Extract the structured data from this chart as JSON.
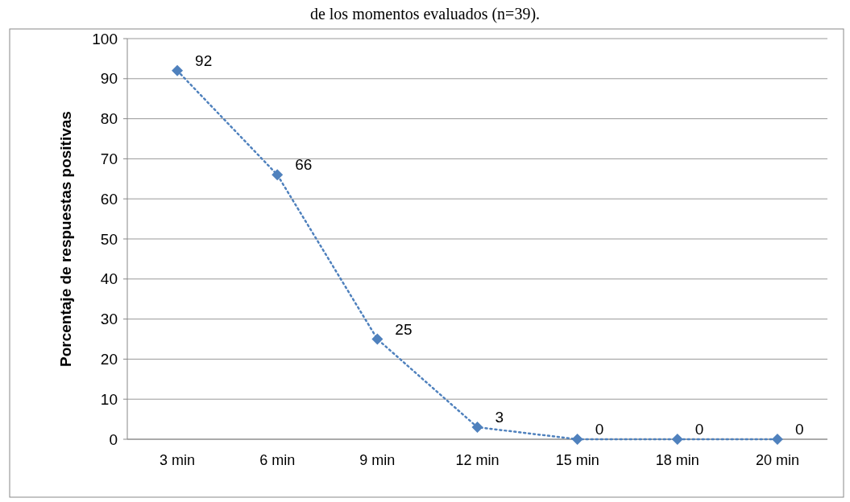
{
  "chart_data": {
    "type": "line",
    "title": "de los momentos evaluados (n=39).",
    "ylabel": "Porcentaje de respuestas positivas",
    "categories": [
      "3 min",
      "6 min",
      "9 min",
      "12 min",
      "15 min",
      "18 min",
      "20 min"
    ],
    "series": [
      {
        "color": "#4f81bd",
        "values": [
          92,
          66,
          25,
          3,
          0,
          0,
          0
        ]
      }
    ],
    "ylim": [
      0,
      100
    ],
    "yticks": [
      0,
      10,
      20,
      30,
      40,
      50,
      60,
      70,
      80,
      90,
      100
    ],
    "grid": "y",
    "marker": "diamond",
    "line_style": "dotted",
    "data_labels": true
  }
}
